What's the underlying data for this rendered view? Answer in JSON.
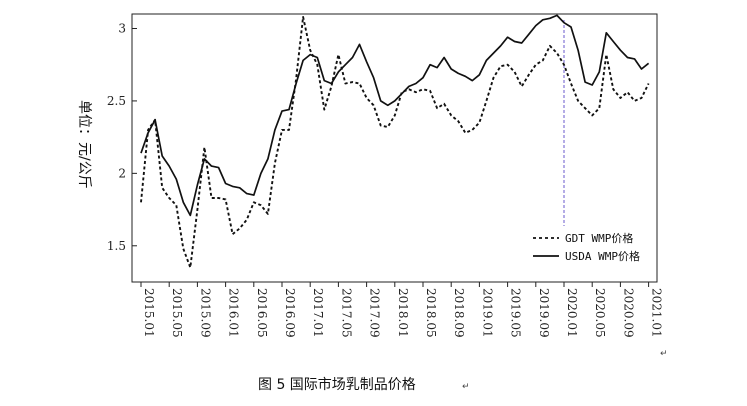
{
  "caption": "图 5   国际市场乳制品价格",
  "return_mark": "↵",
  "chart_data": {
    "type": "line",
    "title": "",
    "xlabel": "",
    "ylabel": "单位：元/公斤",
    "ylim": [
      1.25,
      3.1
    ],
    "yticks": [
      1.5,
      2,
      2.5,
      3
    ],
    "ytick_labels": [
      "1.5",
      "2",
      "2.5",
      "3"
    ],
    "x_start_label": "2015.01",
    "x_months": 73,
    "xtick_labels": [
      "2015.01",
      "2015.05",
      "2015.09",
      "2016.01",
      "2016.05",
      "2016.09",
      "2017.01",
      "2017.05",
      "2017.09",
      "2018.01",
      "2018.05",
      "2018.09",
      "2019.01",
      "2019.05",
      "2019.09",
      "2020.01",
      "2020.05",
      "2020.09",
      "2021.01"
    ],
    "reference_line": {
      "x": "2020.01",
      "style": "dashed",
      "color": "#6a5acd"
    },
    "legend_position": "lower-right",
    "grid": false,
    "series": [
      {
        "name": "GDT WMP价格",
        "style": "dotted",
        "color": "#111111",
        "values": [
          1.8,
          2.3,
          2.37,
          1.9,
          1.83,
          1.78,
          1.48,
          1.35,
          1.75,
          2.18,
          1.83,
          1.83,
          1.82,
          1.58,
          1.62,
          1.68,
          1.8,
          1.78,
          1.72,
          2.07,
          2.3,
          2.3,
          2.65,
          3.08,
          2.85,
          2.75,
          2.44,
          2.6,
          2.82,
          2.62,
          2.63,
          2.62,
          2.52,
          2.47,
          2.33,
          2.32,
          2.4,
          2.56,
          2.58,
          2.56,
          2.58,
          2.57,
          2.45,
          2.48,
          2.4,
          2.36,
          2.28,
          2.3,
          2.35,
          2.5,
          2.66,
          2.74,
          2.75,
          2.7,
          2.6,
          2.68,
          2.75,
          2.78,
          2.88,
          2.83,
          2.75,
          2.62,
          2.5,
          2.45,
          2.4,
          2.45,
          2.82,
          2.58,
          2.52,
          2.56,
          2.5,
          2.52,
          2.62
        ]
      },
      {
        "name": "USDA WMP价格",
        "style": "solid",
        "color": "#111111",
        "values": [
          2.14,
          2.28,
          2.37,
          2.12,
          2.05,
          1.96,
          1.8,
          1.71,
          1.92,
          2.1,
          2.05,
          2.04,
          1.93,
          1.91,
          1.9,
          1.86,
          1.85,
          2.0,
          2.1,
          2.3,
          2.43,
          2.44,
          2.62,
          2.78,
          2.82,
          2.8,
          2.64,
          2.62,
          2.7,
          2.75,
          2.8,
          2.89,
          2.77,
          2.66,
          2.5,
          2.47,
          2.5,
          2.55,
          2.6,
          2.62,
          2.66,
          2.75,
          2.73,
          2.8,
          2.72,
          2.69,
          2.67,
          2.64,
          2.68,
          2.78,
          2.83,
          2.88,
          2.94,
          2.91,
          2.9,
          2.96,
          3.02,
          3.06,
          3.07,
          3.09,
          3.04,
          3.01,
          2.85,
          2.63,
          2.61,
          2.7,
          2.97,
          2.91,
          2.85,
          2.8,
          2.79,
          2.72,
          2.76
        ]
      }
    ]
  }
}
